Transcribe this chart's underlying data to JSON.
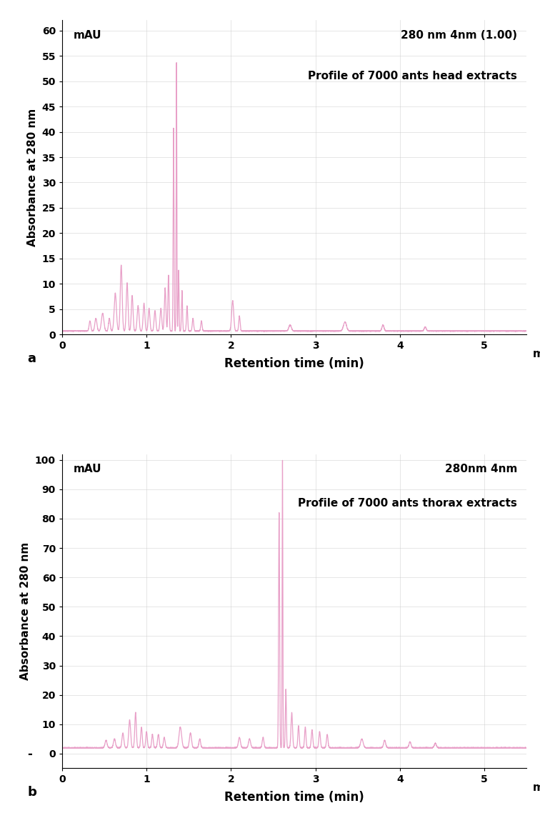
{
  "line_color": "#e8a0c8",
  "bg_color": "#ffffff",
  "grid_color": "#cccccc",
  "plot_a": {
    "title_line1": "280 nm 4nm (1.00)",
    "title_line2": "Profile of 7000 ants head extracts",
    "mau_label": "mAU",
    "ylabel": "Absorbance at 280 nm",
    "xlabel": "Retention time (min)",
    "panel_label": "a",
    "xlim": [
      0,
      5.5
    ],
    "ylim": [
      0,
      62
    ],
    "yticks": [
      0,
      5,
      10,
      15,
      20,
      25,
      30,
      35,
      40,
      45,
      50,
      55,
      60
    ],
    "xticks": [
      0,
      1,
      2,
      3,
      4,
      5
    ],
    "xlabel_extra": "mi"
  },
  "plot_b": {
    "title_line1": "280nm 4nm",
    "title_line2": "Profile of 7000 ants thorax extracts",
    "mau_label": "mAU",
    "ylabel": "Absorbance at 280 nm",
    "xlabel": "Retention time (min)",
    "panel_label": "b",
    "xlim": [
      0,
      5.5
    ],
    "ylim": [
      -5,
      102
    ],
    "yticks": [
      0,
      10,
      20,
      30,
      40,
      50,
      60,
      70,
      80,
      90,
      100
    ],
    "xticks": [
      0,
      1,
      2,
      3,
      4,
      5
    ],
    "xlabel_extra": "mi",
    "neg_label": "-"
  }
}
